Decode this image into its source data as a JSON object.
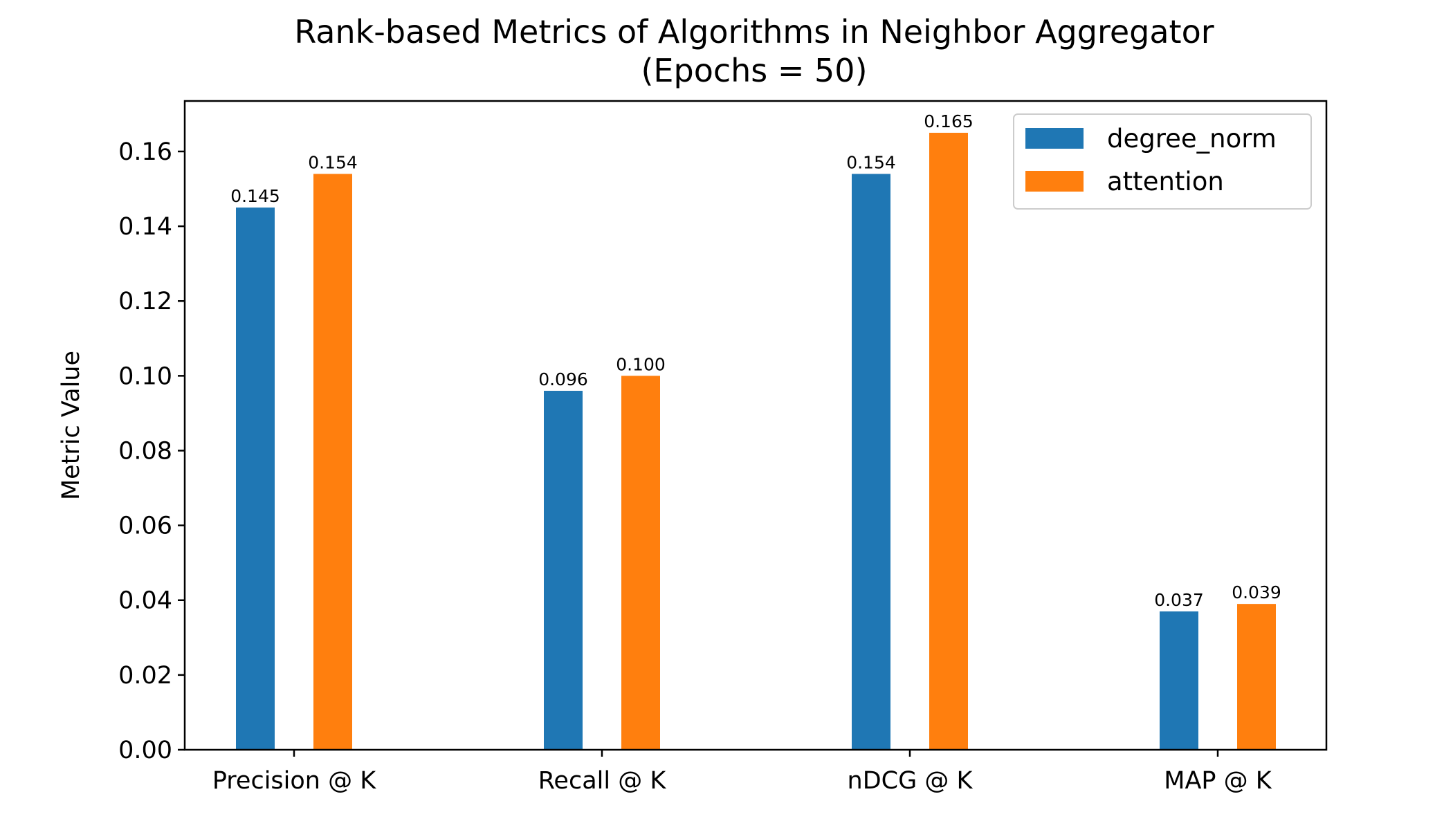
{
  "chart_data": {
    "type": "bar",
    "title": "Rank-based Metrics of Algorithms in Neighbor Aggregator",
    "subtitle": "(Epochs = 50)",
    "xlabel": "",
    "ylabel": "Metric Value",
    "categories": [
      "Precision @ K",
      "Recall @ K",
      "nDCG @ K",
      "MAP @ K"
    ],
    "series": [
      {
        "name": "degree_norm",
        "color": "#1f77b4",
        "values": [
          0.145,
          0.096,
          0.154,
          0.037
        ],
        "labels": [
          "0.145",
          "0.096",
          "0.154",
          "0.037"
        ]
      },
      {
        "name": "attention",
        "color": "#ff7f0e",
        "values": [
          0.154,
          0.1,
          0.165,
          0.039
        ],
        "labels": [
          "0.154",
          "0.100",
          "0.165",
          "0.039"
        ]
      }
    ],
    "ylim": [
      0,
      0.1735
    ],
    "yticks": [
      0.0,
      0.02,
      0.04,
      0.06,
      0.08,
      0.1,
      0.12,
      0.14,
      0.16
    ],
    "ytick_labels": [
      "0.00",
      "0.02",
      "0.04",
      "0.06",
      "0.08",
      "0.10",
      "0.12",
      "0.14",
      "0.16"
    ],
    "grid": false,
    "legend_position": "top-right"
  }
}
